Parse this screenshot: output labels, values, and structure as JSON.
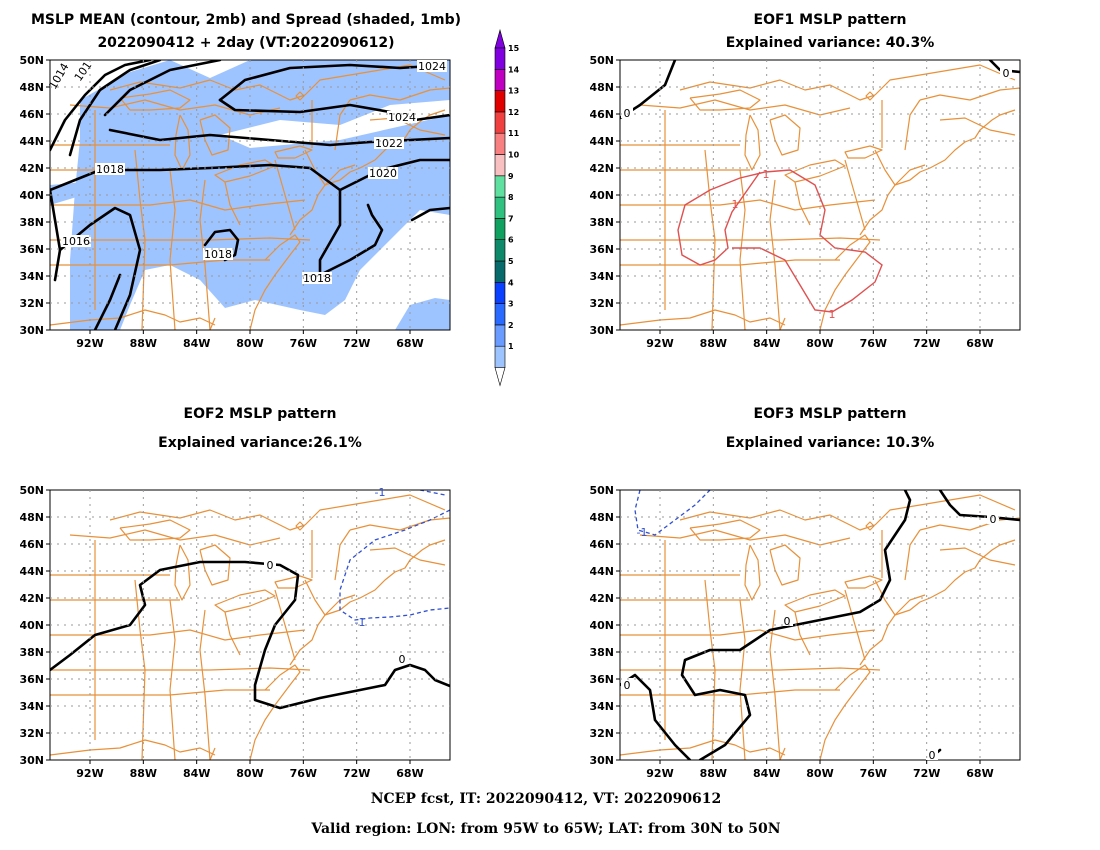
{
  "panels": [
    {
      "title1": "MSLP MEAN (contour, 2mb) and Spread (shaded, 1mb)",
      "title2": "2022090412 + 2day (VT:2022090612)",
      "labels": [
        "1024",
        "1024",
        "1022",
        "1020",
        "1018",
        "1018",
        "1018",
        "1016",
        "1014",
        "101"
      ]
    },
    {
      "title1": "EOF1 MSLP pattern",
      "title2": "Explained variance: 40.3%",
      "labels": [
        "0",
        "0",
        "1",
        "1",
        "1"
      ]
    },
    {
      "title1": "EOF2 MSLP pattern",
      "title2": "Explained variance:26.1%",
      "labels": [
        "0",
        "0",
        "-1",
        "-1"
      ]
    },
    {
      "title1": "EOF3 MSLP pattern",
      "title2": "Explained variance: 10.3%",
      "labels": [
        "0",
        "0",
        "0",
        "0",
        "-1"
      ]
    }
  ],
  "axes": {
    "lon_ticks": [
      "92W",
      "88W",
      "84W",
      "80W",
      "76W",
      "72W",
      "68W"
    ],
    "lat_ticks": [
      "50N",
      "48N",
      "46N",
      "44N",
      "42N",
      "40N",
      "38N",
      "36N",
      "34N",
      "32N",
      "30N"
    ]
  },
  "colorbar": {
    "levels": [
      "1",
      "2",
      "3",
      "4",
      "5",
      "6",
      "7",
      "8",
      "9",
      "10",
      "11",
      "12",
      "13",
      "14",
      "15"
    ],
    "colors": [
      "#c8dcff",
      "#9ec4ff",
      "#6a9cff",
      "#2a6aff",
      "#0a40ff",
      "#086a6a",
      "#0e8a6a",
      "#10a060",
      "#30c080",
      "#60e0a0",
      "#f8c0c0",
      "#f88080",
      "#f04040",
      "#e00000",
      "#c000c0",
      "#8000e0"
    ]
  },
  "footer": {
    "line1": "NCEP fcst, IT: 2022090412, VT: 2022090612",
    "line2": "Valid region: LON: from 95W to 65W; LAT: from 30N to 50N"
  },
  "colors": {
    "map": "#e8913a",
    "spread": "#9ec4ff",
    "positive": "#e05050",
    "negative": "#3050d0"
  }
}
